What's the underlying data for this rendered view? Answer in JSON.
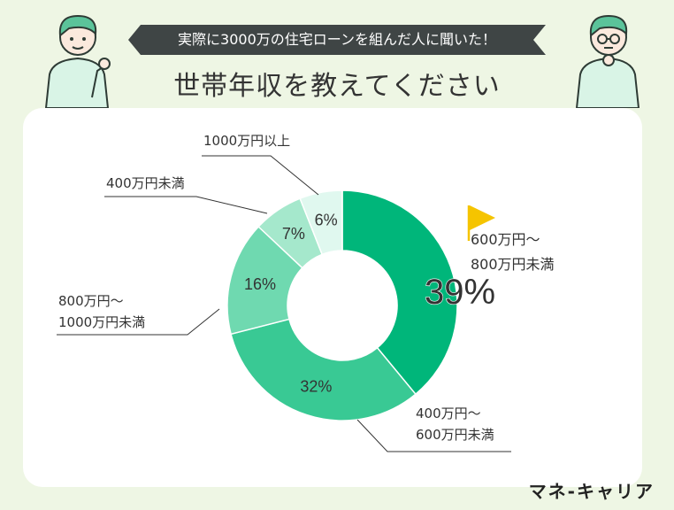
{
  "header": {
    "banner_text": "実際に3000万の住宅ローンを組んだ人に聞いた！",
    "title": "世帯年収を教えてください"
  },
  "brand": "マネ-キャリア",
  "colors": {
    "background": "#eef6e4",
    "banner": "#3f4545",
    "slices": [
      "#00b67a",
      "#39c994",
      "#6fd9b0",
      "#a5e8cc",
      "#e0f8ef"
    ],
    "flag": "#f5c400"
  },
  "chart_data": {
    "type": "pie",
    "donut": true,
    "title": "世帯年収を教えてください",
    "slices": [
      {
        "label": [
          "600万円～",
          "800万円未満"
        ],
        "value": 39,
        "display": "39%"
      },
      {
        "label": [
          "400万円～",
          "600万円未満"
        ],
        "value": 32,
        "display": "32%"
      },
      {
        "label": [
          "800万円～",
          "1000万円未満"
        ],
        "value": 16,
        "display": "16%"
      },
      {
        "label": [
          "400万円未満"
        ],
        "value": 7,
        "display": "7%"
      },
      {
        "label": [
          "1000万円以上"
        ],
        "value": 6,
        "display": "6%"
      }
    ],
    "highlight": "600万円～800万円未満"
  }
}
